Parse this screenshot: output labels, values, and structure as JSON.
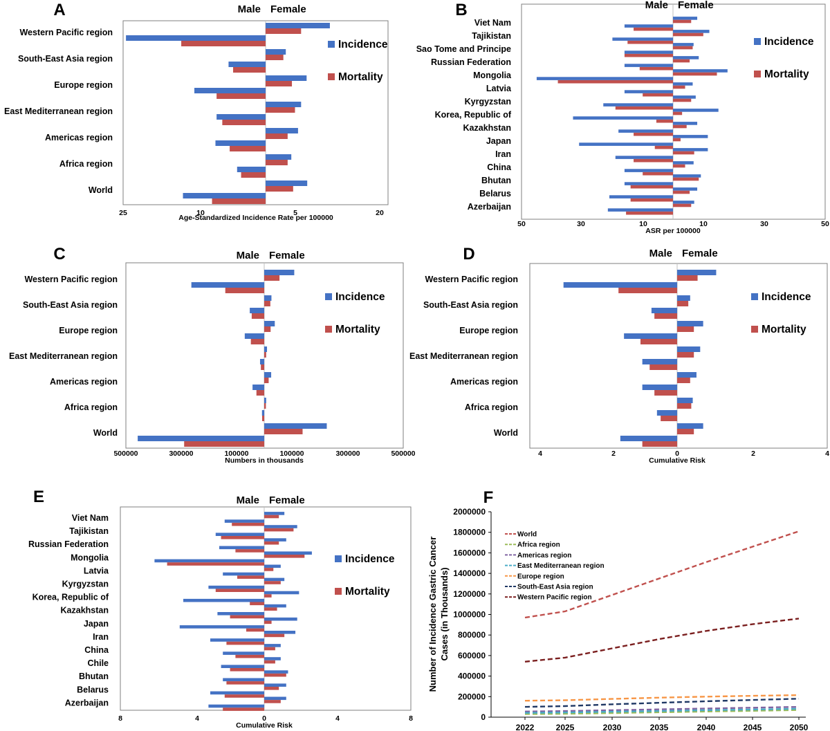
{
  "colors": {
    "incidence": "#4472C4",
    "mortality": "#C0504D",
    "frame": "#7f7f7f"
  },
  "chart_data": [
    {
      "panel": "A",
      "type": "bar",
      "orientation": "horizontal-pyramid",
      "side_labels": {
        "left": "Male",
        "right": "Female"
      },
      "xlabel": "Age-Standardized Incidence Rate per 100000",
      "x_tick_labels": [
        "25",
        "10",
        "5",
        "20"
      ],
      "x_range_male": [
        25,
        0
      ],
      "x_range_female": [
        0,
        20
      ],
      "legend": [
        "Incidence",
        "Mortality"
      ],
      "categories": [
        "Western Pacific region",
        "South-East Asia region",
        "Europe region",
        "East Mediterranean region",
        "Americas region",
        "Africa region",
        "World"
      ],
      "series": [
        {
          "name": "Incidence",
          "male": [
            24.5,
            6.5,
            12.5,
            8.6,
            8.8,
            5.0,
            14.5
          ],
          "female": [
            10.5,
            3.3,
            6.7,
            5.8,
            5.3,
            4.2,
            6.8
          ]
        },
        {
          "name": "Mortality",
          "male": [
            14.8,
            5.7,
            8.6,
            7.6,
            6.3,
            4.3,
            9.4
          ],
          "female": [
            5.8,
            2.9,
            4.3,
            4.8,
            3.6,
            3.6,
            4.5
          ]
        }
      ]
    },
    {
      "panel": "B",
      "type": "bar",
      "orientation": "horizontal-pyramid",
      "side_labels": {
        "left": "Male",
        "right": "Female"
      },
      "xlabel": "ASR per 100000",
      "x_tick_labels": [
        "50",
        "30",
        "10",
        "10",
        "30",
        "50"
      ],
      "x_range_male": [
        50,
        0
      ],
      "x_range_female": [
        0,
        50
      ],
      "legend": [
        "Incidence",
        "Mortality"
      ],
      "categories": [
        "Viet Nam",
        "Tajikistan",
        "Sao Tome and Principe",
        "Russian Federation",
        "Mongolia",
        "Latvia",
        "Kyrgyzstan",
        "Korea, Republic of",
        "Kazakhstan",
        "Japan",
        "Iran",
        "China",
        "Bhutan",
        "Belarus",
        "Azerbaijan"
      ],
      "series": [
        {
          "name": "Incidence",
          "male": [
            16,
            20,
            16,
            16,
            45,
            16,
            23,
            33,
            18,
            31,
            19,
            16,
            16,
            21,
            21.5
          ],
          "female": [
            8,
            12,
            6.8,
            8.5,
            18,
            6.5,
            7.5,
            15,
            8,
            11.5,
            11.5,
            6.8,
            9.2,
            8,
            7
          ]
        },
        {
          "name": "Mortality",
          "male": [
            13,
            15,
            16,
            11,
            38,
            10,
            19,
            5.5,
            13,
            6,
            13,
            10,
            14,
            14,
            15.5
          ],
          "female": [
            6,
            10,
            6.5,
            5.5,
            14.5,
            4,
            6,
            3,
            4.5,
            2.5,
            7,
            4,
            8.5,
            5.5,
            6
          ]
        }
      ]
    },
    {
      "panel": "C",
      "type": "bar",
      "orientation": "horizontal-pyramid",
      "side_labels": {
        "left": "Male",
        "right": "Female"
      },
      "xlabel": "Numbers in thousands",
      "x_tick_labels": [
        "500000",
        "300000",
        "100000",
        "100000",
        "300000",
        "500000"
      ],
      "x_range_male": [
        500000,
        0
      ],
      "x_range_female": [
        0,
        500000
      ],
      "legend": [
        "Incidence",
        "Mortality"
      ],
      "categories": [
        "Western Pacific region",
        "South-East Asia region",
        "Europe region",
        "East Mediterranean region",
        "Americas region",
        "Africa region",
        "World"
      ],
      "series": [
        {
          "name": "Incidence",
          "male": [
            262000,
            52000,
            70000,
            15000,
            42000,
            8000,
            455000
          ],
          "female": [
            108000,
            26000,
            38000,
            10000,
            25000,
            7000,
            225000
          ]
        },
        {
          "name": "Mortality",
          "male": [
            140000,
            45000,
            48000,
            12000,
            28000,
            7500,
            288000
          ],
          "female": [
            55000,
            22000,
            23000,
            7000,
            16000,
            6000,
            138000
          ]
        }
      ]
    },
    {
      "panel": "D",
      "type": "bar",
      "orientation": "horizontal-pyramid",
      "side_labels": {
        "left": "Male",
        "right": "Female"
      },
      "xlabel": "Cumulative Risk",
      "x_tick_labels": [
        "4",
        "2",
        "0",
        "2",
        "4"
      ],
      "x_range_male": [
        4,
        0
      ],
      "x_range_female": [
        0,
        4
      ],
      "legend": [
        "Incidence",
        "Mortality"
      ],
      "categories": [
        "Western Pacific region",
        "South-East Asia region",
        "Europe region",
        "East Mediterranean region",
        "Americas region",
        "Africa region",
        "World"
      ],
      "series": [
        {
          "name": "Incidence",
          "male": [
            3.1,
            0.7,
            1.45,
            0.95,
            0.95,
            0.55,
            1.55
          ],
          "female": [
            1.05,
            0.35,
            0.7,
            0.62,
            0.52,
            0.42,
            0.7
          ]
        },
        {
          "name": "Mortality",
          "male": [
            1.6,
            0.62,
            1.0,
            0.75,
            0.62,
            0.45,
            0.95
          ],
          "female": [
            0.55,
            0.3,
            0.45,
            0.45,
            0.35,
            0.38,
            0.45
          ]
        }
      ]
    },
    {
      "panel": "E",
      "type": "bar",
      "orientation": "horizontal-pyramid",
      "side_labels": {
        "left": "Male",
        "right": "Female"
      },
      "xlabel": "Cumulative Risk",
      "x_tick_labels": [
        "8",
        "4",
        "0",
        "4",
        "8"
      ],
      "x_range_male": [
        8,
        0
      ],
      "x_range_female": [
        0,
        8
      ],
      "legend": [
        "Incidence",
        "Mortality"
      ],
      "categories": [
        "Viet Nam",
        "Tajikistan",
        "Russian Federation",
        "Mongolia",
        "Latvia",
        "Kyrgyzstan",
        "Korea, Republic of",
        "Kazakhstan",
        "Japan",
        "Iran",
        "China",
        "Chile",
        "Bhutan",
        "Belarus",
        "Azerbaijan"
      ],
      "series": [
        {
          "name": "Incidence",
          "male": [
            2.2,
            2.7,
            2.5,
            6.1,
            2.3,
            3.1,
            4.5,
            2.6,
            4.7,
            3.0,
            2.3,
            2.4,
            2.3,
            3.0,
            3.1
          ],
          "female": [
            1.1,
            1.8,
            1.2,
            2.6,
            0.9,
            1.1,
            1.9,
            1.2,
            1.8,
            1.7,
            0.9,
            0.9,
            1.3,
            1.2,
            1.2
          ]
        },
        {
          "name": "Mortality",
          "male": [
            1.8,
            2.4,
            1.6,
            5.4,
            1.5,
            2.7,
            0.8,
            1.9,
            1.0,
            2.1,
            1.6,
            1.9,
            2.1,
            2.2,
            2.3
          ],
          "female": [
            0.8,
            1.6,
            0.8,
            2.2,
            0.5,
            0.9,
            0.4,
            0.7,
            0.4,
            1.1,
            0.6,
            0.6,
            1.2,
            0.8,
            0.9
          ]
        }
      ]
    },
    {
      "panel": "F",
      "type": "line",
      "x": [
        2022,
        2025,
        2030,
        2035,
        2040,
        2045,
        2050
      ],
      "x_tick_labels": [
        "2022",
        "2025",
        "2030",
        "2035",
        "2040",
        "2045",
        "2050"
      ],
      "ylabel_lines": [
        "Number of Incidence Gastric Cancer",
        "Cases (in Thousands)"
      ],
      "ylim": [
        0,
        2000000
      ],
      "y_ticks": [
        0,
        200000,
        400000,
        600000,
        800000,
        1000000,
        1200000,
        1400000,
        1600000,
        1800000,
        2000000
      ],
      "y_tick_labels": [
        "0",
        "200000",
        "400000",
        "600000",
        "800000",
        "1000000",
        "1200000",
        "1400000",
        "1600000",
        "1800000",
        "2000000"
      ],
      "series": [
        {
          "name": "World",
          "color": "#C0504D",
          "values": [
            970000,
            1030000,
            1190000,
            1350000,
            1510000,
            1660000,
            1810000
          ]
        },
        {
          "name": "Africa region",
          "color": "#9BBB59",
          "values": [
            30000,
            33000,
            40000,
            48000,
            55000,
            62000,
            70000
          ]
        },
        {
          "name": "Americas region",
          "color": "#8064A2",
          "values": [
            55000,
            60000,
            68000,
            76000,
            84000,
            92000,
            100000
          ]
        },
        {
          "name": "East Mediterranean region",
          "color": "#4BACC6",
          "values": [
            42000,
            46000,
            53000,
            60000,
            68000,
            75000,
            82000
          ]
        },
        {
          "name": "Europe region",
          "color": "#F79646",
          "values": [
            160000,
            165000,
            178000,
            190000,
            200000,
            208000,
            215000
          ]
        },
        {
          "name": "South-East Asia region",
          "color": "#1F3864",
          "values": [
            100000,
            108000,
            125000,
            140000,
            155000,
            168000,
            180000
          ]
        },
        {
          "name": "Western Pacific region",
          "color": "#7B1F1F",
          "values": [
            540000,
            580000,
            670000,
            760000,
            840000,
            905000,
            960000
          ]
        }
      ]
    }
  ]
}
